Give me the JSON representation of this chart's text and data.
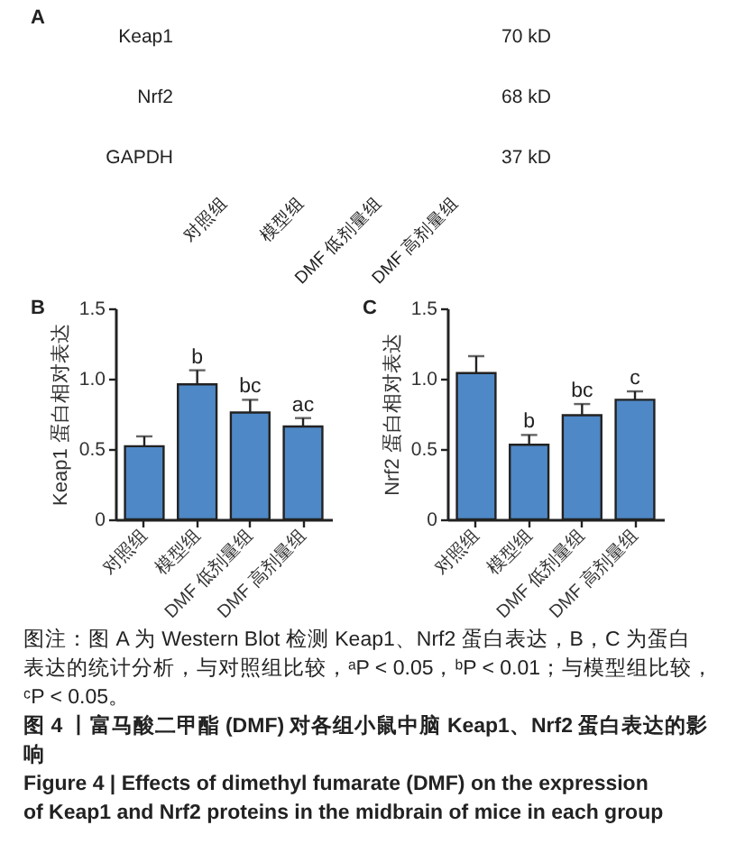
{
  "chart_data": [
    {
      "type": "other",
      "title": "A",
      "categories": [
        "对照组",
        "模型组",
        "DMF 低剂量组",
        "DMF 高剂量组"
      ],
      "y_categories": [
        "Keap1",
        "Nrf2",
        "GAPDH"
      ],
      "y2_categories": [
        "70 kD",
        "68 kD",
        "37 kD"
      ]
    },
    {
      "type": "bar",
      "title": "B",
      "ylabel": "Keap1 蛋白相对表达",
      "categories": [
        "对照组",
        "模型组",
        "DMF 低剂量组",
        "DMF 高剂量组"
      ],
      "values": [
        0.52,
        0.96,
        0.76,
        0.66
      ],
      "errors": [
        0.07,
        0.1,
        0.09,
        0.06
      ],
      "color": "#4f88c6",
      "ylim": [
        0,
        1.5
      ],
      "yticks": [
        0,
        0.5,
        {
          "value": 1,
          "label": "1.0"
        },
        1.5
      ],
      "annotations": [
        {
          "text": "b",
          "x": "模型组",
          "y": 1.06
        },
        {
          "text": "bc",
          "x": "DMF 低剂量组",
          "y": 0.85
        },
        {
          "text": "ac",
          "x": "DMF 高剂量组",
          "y": 0.72
        }
      ]
    },
    {
      "type": "bar",
      "title": "C",
      "ylabel": "Nrf2 蛋白相对表达",
      "categories": [
        "对照组",
        "模型组",
        "DMF 低剂量组",
        "DMF 高剂量组"
      ],
      "values": [
        1.04,
        0.53,
        0.74,
        0.85
      ],
      "errors": [
        0.12,
        0.07,
        0.08,
        0.06
      ],
      "color": "#4f88c6",
      "ylim": [
        0,
        1.5
      ],
      "yticks": [
        0,
        0.5,
        {
          "value": 1,
          "label": "1.0"
        },
        1.5
      ],
      "annotations": [
        {
          "text": "b",
          "x": "模型组",
          "y": 0.6
        },
        {
          "text": "bc",
          "x": "DMF 低剂量组",
          "y": 0.82
        },
        {
          "text": "c",
          "x": "DMF 高剂量组",
          "y": 0.91
        }
      ]
    },
    {
      "type": "other",
      "annotations": [
        "图注：图 A 为 Western Blot 检测 Keap1、Nrf2 蛋白表达，B，C 为蛋白表达的统计分析，与对照组比较，ᵃP < 0.05，ᵇP < 0.01；与模型组比较，ᶜP < 0.05。"
      ],
      "title": "图 4 丨富马酸二甲酯 (DMF) 对各组小鼠中脑 Keap1、Nrf2 蛋白表达的影响",
      "subtitle": "Figure 4 | Effects of dimethyl fumarate (DMF) on the expression of Keap1 and Nrf2 proteins in the midbrain of mice in each group"
    }
  ]
}
